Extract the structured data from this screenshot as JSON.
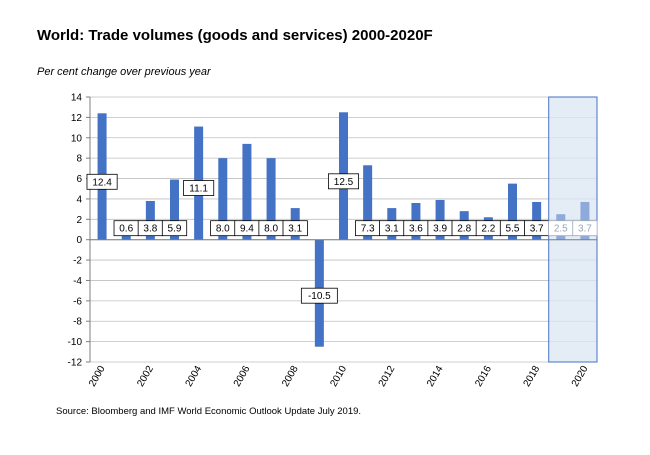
{
  "chart_data": {
    "type": "bar",
    "title": "World: Trade volumes (goods and services) 2000-2020F",
    "ylabel": "Per cent change over previous year",
    "xlabel": "",
    "ylim": [
      -12,
      14
    ],
    "yticks": [
      14,
      12,
      10,
      8,
      6,
      4,
      2,
      0,
      -2,
      -4,
      -6,
      -8,
      -10,
      -12
    ],
    "xtick_labels": [
      "2000",
      "2002",
      "2004",
      "2006",
      "2008",
      "2010",
      "2012",
      "2014",
      "2016",
      "2018",
      "2020"
    ],
    "grid": true,
    "categories": [
      "2000",
      "2001",
      "2002",
      "2003",
      "2004",
      "2005",
      "2006",
      "2007",
      "2008",
      "2009",
      "2010",
      "2011",
      "2012",
      "2013",
      "2014",
      "2015",
      "2016",
      "2017",
      "2018",
      "2019",
      "2020"
    ],
    "bar_heights": [
      12.4,
      0.6,
      3.8,
      5.9,
      11.1,
      8.0,
      9.4,
      8.0,
      3.1,
      -10.5,
      12.5,
      7.3,
      3.1,
      3.6,
      3.9,
      2.8,
      2.2,
      5.5,
      3.7,
      2.5,
      3.7
    ],
    "data_labels": [
      "12.4",
      "0.6",
      "3.8",
      "5.9",
      "11.1",
      "8.0",
      "9.4",
      "8.0",
      "3.1",
      "-10.5",
      "12.5",
      "7.3",
      "3.1",
      "3.6",
      "3.9",
      "2.8",
      "2.2",
      "5.5",
      "3.7",
      "2.5",
      "3.7"
    ],
    "forecast_categories": [
      "2019",
      "2020"
    ],
    "colors": {
      "bar": "#4472c4",
      "forecast_bar": "#8eaadb",
      "forecast_shade": "#dbe5f1",
      "forecast_border": "#4472c4"
    }
  },
  "source": "Source: Bloomberg and IMF World Economic Outlook Update July 2019."
}
